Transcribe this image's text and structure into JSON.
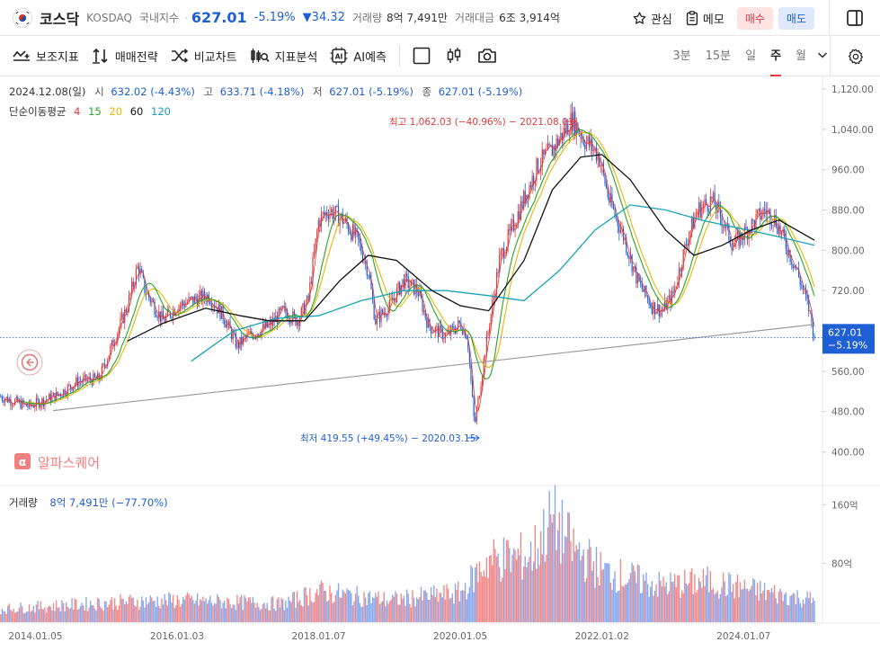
{
  "header": {
    "title": "코스닥",
    "code": "KOSDAQ",
    "index_label": "국내지수",
    "price": "627.01",
    "change_pct": "-5.19%",
    "change_abs": "▼34.32",
    "volume_label": "거래량",
    "volume_value": "8억 7,491만",
    "amount_label": "거래대금",
    "amount_value": "6조 3,914억",
    "watch_label": "관심",
    "memo_label": "메모",
    "buy_label": "매수",
    "sell_label": "매도"
  },
  "toolbar": {
    "tools": [
      "보조지표",
      "매매전략",
      "비교차트",
      "지표분석",
      "AI예측"
    ],
    "periods": [
      "3분",
      "15분",
      "일",
      "주",
      "월"
    ],
    "active_period": "주"
  },
  "info": {
    "date": "2024.12.08(일)",
    "open_label": "시",
    "open": "632.02 (-4.43%)",
    "high_label": "고",
    "high": "633.71 (-4.18%)",
    "low_label": "저",
    "low": "627.01 (-5.19%)",
    "close_label": "종",
    "close": "627.01 (-5.19%)",
    "ma_label": "단순이동평균",
    "ma_periods": [
      "4",
      "15",
      "20",
      "60",
      "120"
    ]
  },
  "colors": {
    "up": "#e03a3a",
    "down": "#1f5fd6",
    "ma4": "#e03a3a",
    "ma15": "#2ca02c",
    "ma20": "#e6b800",
    "ma60": "#111111",
    "ma120": "#17a2b8"
  },
  "annotations": {
    "high": "최고 1,062.03 (−40.96%) − 2021.08.01",
    "low": "최저 419.55 (+49.45%) − 2020.03.15"
  },
  "watermark": "알파스퀘어",
  "last_price_tag": {
    "price": "627.01",
    "pct": "−5.19%"
  },
  "volume_panel": {
    "label": "거래량",
    "value": "8억 7,491만 (−77.70%)"
  },
  "chart_data": [
    {
      "type": "line",
      "title": "",
      "y_ticks": [
        "1,120.00",
        "1,040.00",
        "960.00",
        "880.00",
        "800.00",
        "720.00",
        "560.00",
        "480.00",
        "400.00"
      ],
      "y_tick_values": [
        1120,
        1040,
        960,
        880,
        800,
        720,
        560,
        480,
        400
      ],
      "ylim": [
        360,
        1145
      ],
      "x_ticks": [
        "2014.01.05",
        "2016.01.03",
        "2018.01.07",
        "2020.01.05",
        "2022.01.02",
        "2024.01.07"
      ],
      "x_tick_years": [
        2014.0,
        2016.0,
        2018.0,
        2020.0,
        2022.0,
        2024.0
      ],
      "xlim": [
        2013.5,
        2025.05
      ],
      "close_path": [
        [
          2013.5,
          510
        ],
        [
          2013.9,
          490
        ],
        [
          2014.3,
          512
        ],
        [
          2014.6,
          540
        ],
        [
          2014.9,
          545
        ],
        [
          2015.05,
          600
        ],
        [
          2015.3,
          690
        ],
        [
          2015.45,
          770
        ],
        [
          2015.55,
          720
        ],
        [
          2015.8,
          660
        ],
        [
          2016.0,
          690
        ],
        [
          2016.2,
          700
        ],
        [
          2016.45,
          710
        ],
        [
          2016.65,
          670
        ],
        [
          2016.85,
          610
        ],
        [
          2017.0,
          630
        ],
        [
          2017.3,
          650
        ],
        [
          2017.5,
          680
        ],
        [
          2017.7,
          660
        ],
        [
          2017.85,
          700
        ],
        [
          2018.0,
          860
        ],
        [
          2018.15,
          880
        ],
        [
          2018.35,
          860
        ],
        [
          2018.55,
          820
        ],
        [
          2018.7,
          760
        ],
        [
          2018.8,
          660
        ],
        [
          2019.0,
          690
        ],
        [
          2019.2,
          740
        ],
        [
          2019.4,
          720
        ],
        [
          2019.55,
          650
        ],
        [
          2019.8,
          630
        ],
        [
          2020.0,
          655
        ],
        [
          2020.1,
          630
        ],
        [
          2020.2,
          450
        ],
        [
          2020.35,
          600
        ],
        [
          2020.55,
          780
        ],
        [
          2020.75,
          850
        ],
        [
          2020.95,
          920
        ],
        [
          2021.1,
          970
        ],
        [
          2021.3,
          1000
        ],
        [
          2021.58,
          1060
        ],
        [
          2021.75,
          1020
        ],
        [
          2021.95,
          990
        ],
        [
          2022.1,
          900
        ],
        [
          2022.3,
          830
        ],
        [
          2022.5,
          740
        ],
        [
          2022.7,
          690
        ],
        [
          2022.85,
          680
        ],
        [
          2023.0,
          710
        ],
        [
          2023.2,
          820
        ],
        [
          2023.35,
          880
        ],
        [
          2023.55,
          900
        ],
        [
          2023.7,
          860
        ],
        [
          2023.85,
          810
        ],
        [
          2024.05,
          840
        ],
        [
          2024.3,
          880
        ],
        [
          2024.45,
          860
        ],
        [
          2024.6,
          810
        ],
        [
          2024.75,
          760
        ],
        [
          2024.93,
          680
        ],
        [
          2025.0,
          627.01
        ]
      ],
      "ma60_path": [
        [
          2015.3,
          620
        ],
        [
          2015.8,
          655
        ],
        [
          2016.4,
          685
        ],
        [
          2016.9,
          670
        ],
        [
          2017.3,
          660
        ],
        [
          2017.8,
          660
        ],
        [
          2018.3,
          740
        ],
        [
          2018.7,
          790
        ],
        [
          2019.1,
          780
        ],
        [
          2019.6,
          720
        ],
        [
          2020.0,
          690
        ],
        [
          2020.4,
          680
        ],
        [
          2020.9,
          780
        ],
        [
          2021.3,
          920
        ],
        [
          2021.7,
          985
        ],
        [
          2022.0,
          990
        ],
        [
          2022.4,
          940
        ],
        [
          2022.9,
          840
        ],
        [
          2023.3,
          790
        ],
        [
          2023.7,
          810
        ],
        [
          2024.1,
          840
        ],
        [
          2024.5,
          860
        ],
        [
          2025.0,
          820
        ]
      ],
      "ma120_path": [
        [
          2016.2,
          580
        ],
        [
          2016.8,
          640
        ],
        [
          2017.4,
          665
        ],
        [
          2018.0,
          670
        ],
        [
          2018.6,
          700
        ],
        [
          2019.2,
          720
        ],
        [
          2019.8,
          720
        ],
        [
          2020.4,
          710
        ],
        [
          2020.9,
          700
        ],
        [
          2021.4,
          760
        ],
        [
          2021.9,
          840
        ],
        [
          2022.4,
          890
        ],
        [
          2022.9,
          880
        ],
        [
          2023.4,
          860
        ],
        [
          2023.9,
          845
        ],
        [
          2024.4,
          830
        ],
        [
          2025.0,
          810
        ]
      ],
      "trendline": [
        [
          2014.25,
          482
        ],
        [
          2025.0,
          653
        ]
      ]
    },
    {
      "type": "bar",
      "title": "",
      "y_ticks": [
        "160억",
        "80억"
      ],
      "y_tick_values": [
        160,
        80
      ],
      "ylim": [
        0,
        180
      ],
      "volume_profile": [
        [
          2013.5,
          18
        ],
        [
          2015.3,
          28
        ],
        [
          2016.0,
          30
        ],
        [
          2017.5,
          25
        ],
        [
          2018.0,
          42
        ],
        [
          2019.0,
          30
        ],
        [
          2020.0,
          40
        ],
        [
          2020.4,
          85
        ],
        [
          2021.0,
          90
        ],
        [
          2021.3,
          140
        ],
        [
          2021.6,
          100
        ],
        [
          2022.0,
          70
        ],
        [
          2022.8,
          50
        ],
        [
          2023.5,
          55
        ],
        [
          2024.5,
          38
        ],
        [
          2025.0,
          30
        ]
      ]
    }
  ]
}
